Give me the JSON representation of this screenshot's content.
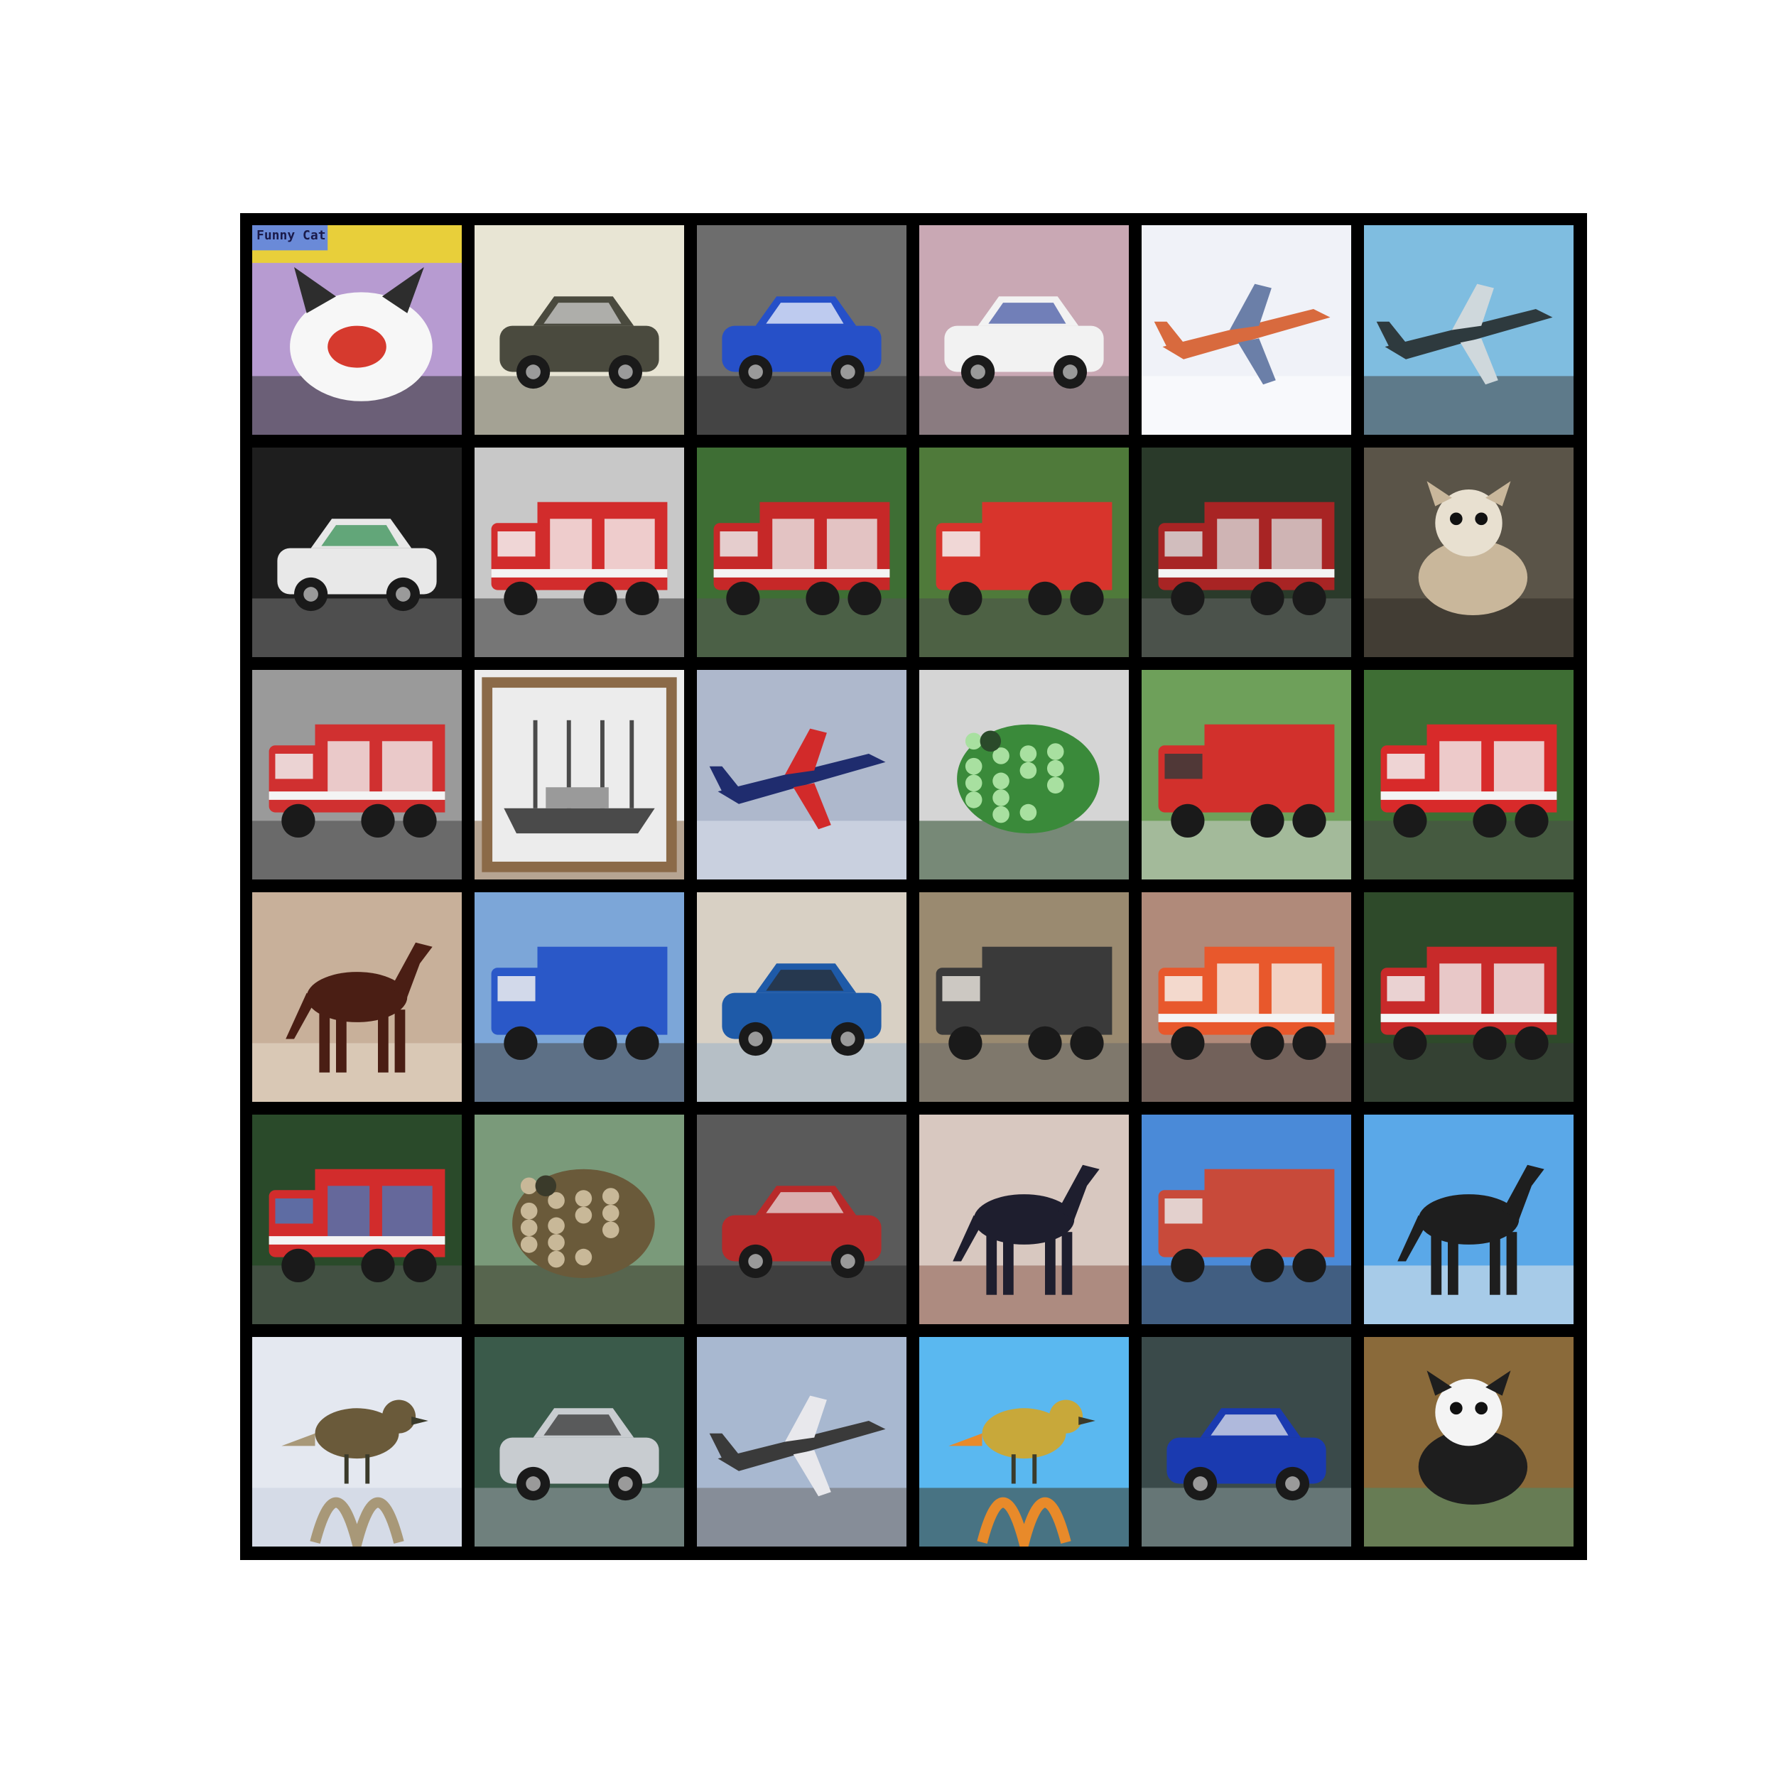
{
  "figure": {
    "grid": {
      "rows": 6,
      "cols": 6
    },
    "tiles": [
      {
        "row": 0,
        "col": 0,
        "subject": "cat-meme",
        "caption": "Funny Cat",
        "palette": [
          "#b79bd1",
          "#f7f7f7",
          "#d63a2e",
          "#2d2d2d"
        ]
      },
      {
        "row": 0,
        "col": 1,
        "subject": "car",
        "palette": [
          "#e8e5d4",
          "#4a4a3e",
          "#d8d8d8",
          "#6b6b5f"
        ]
      },
      {
        "row": 0,
        "col": 2,
        "subject": "car",
        "palette": [
          "#6d6d6d",
          "#2650c8",
          "#ffffff",
          "#222222"
        ]
      },
      {
        "row": 0,
        "col": 3,
        "subject": "suv",
        "palette": [
          "#c9a8b4",
          "#f2f2f2",
          "#3a4fa0",
          "#555555"
        ]
      },
      {
        "row": 0,
        "col": 4,
        "subject": "airplane",
        "palette": [
          "#f0f2f8",
          "#d86a3e",
          "#6b7fa8",
          "#ffffff"
        ]
      },
      {
        "row": 0,
        "col": 5,
        "subject": "airplane",
        "palette": [
          "#7fbde0",
          "#2e3a3e",
          "#cfd8dc",
          "#444444"
        ]
      },
      {
        "row": 1,
        "col": 0,
        "subject": "car",
        "palette": [
          "#1e1e1e",
          "#e8e8e8",
          "#2a8a4a",
          "#777777"
        ]
      },
      {
        "row": 1,
        "col": 1,
        "subject": "fire-truck",
        "palette": [
          "#c8c8c8",
          "#d22c2c",
          "#f5f5f5",
          "#333333"
        ]
      },
      {
        "row": 1,
        "col": 2,
        "subject": "fire-truck",
        "palette": [
          "#3e6e34",
          "#c62828",
          "#eaeaea",
          "#555555"
        ]
      },
      {
        "row": 1,
        "col": 3,
        "subject": "truck",
        "palette": [
          "#4f7a3a",
          "#d8342c",
          "#f4f4f4",
          "#4d4d4d"
        ]
      },
      {
        "row": 1,
        "col": 4,
        "subject": "fire-truck",
        "palette": [
          "#2a3a2a",
          "#a82424",
          "#d8d8d8",
          "#666666"
        ]
      },
      {
        "row": 1,
        "col": 5,
        "subject": "dog",
        "palette": [
          "#5a5448",
          "#c9b79b",
          "#e8e0d0",
          "#2f2a24"
        ]
      },
      {
        "row": 2,
        "col": 0,
        "subject": "fire-truck",
        "palette": [
          "#9a9a9a",
          "#d03030",
          "#f0f0f0",
          "#444444"
        ]
      },
      {
        "row": 2,
        "col": 1,
        "subject": "ship",
        "palette": [
          "#ececec",
          "#4a4a4a",
          "#9a9a9a",
          "#8b6a48"
        ]
      },
      {
        "row": 2,
        "col": 2,
        "subject": "airplane",
        "palette": [
          "#aeb8cc",
          "#1f2c6e",
          "#d22a2a",
          "#e0e4ee"
        ]
      },
      {
        "row": 2,
        "col": 3,
        "subject": "frog",
        "palette": [
          "#d5d5d5",
          "#3a8a3a",
          "#a8e0a0",
          "#2a4a2a"
        ]
      },
      {
        "row": 2,
        "col": 4,
        "subject": "truck",
        "palette": [
          "#6ea05a",
          "#d2302c",
          "#3a3a3a",
          "#cfcfcf"
        ]
      },
      {
        "row": 2,
        "col": 5,
        "subject": "fire-truck",
        "palette": [
          "#3e6e34",
          "#d82a2a",
          "#f2f2f2",
          "#4a4a4a"
        ]
      },
      {
        "row": 3,
        "col": 0,
        "subject": "horse",
        "palette": [
          "#c8b09a",
          "#4a1e14",
          "#3a3e78",
          "#e8dccc"
        ]
      },
      {
        "row": 3,
        "col": 1,
        "subject": "truck",
        "palette": [
          "#7ca6d8",
          "#2a58c8",
          "#f0f0f0",
          "#444444"
        ]
      },
      {
        "row": 3,
        "col": 2,
        "subject": "car",
        "palette": [
          "#d8d0c4",
          "#1e5aa8",
          "#2a2a2a",
          "#9ab0c8"
        ]
      },
      {
        "row": 3,
        "col": 3,
        "subject": "truck",
        "palette": [
          "#9a8a70",
          "#3a3a3a",
          "#e6e2da",
          "#6a6a6a"
        ]
      },
      {
        "row": 3,
        "col": 4,
        "subject": "fire-truck",
        "palette": [
          "#b08a7a",
          "#e8582c",
          "#f4f0ea",
          "#404040"
        ]
      },
      {
        "row": 3,
        "col": 5,
        "subject": "fire-truck",
        "palette": [
          "#2e4a2a",
          "#c82a2a",
          "#f0f0f0",
          "#3a3a3a"
        ]
      },
      {
        "row": 4,
        "col": 0,
        "subject": "fire-truck",
        "palette": [
          "#2a4a2a",
          "#d22c2c",
          "#4a78b8",
          "#555555"
        ]
      },
      {
        "row": 4,
        "col": 1,
        "subject": "frog",
        "palette": [
          "#7a9a7a",
          "#6a5a3a",
          "#c8b898",
          "#3a3a2a"
        ]
      },
      {
        "row": 4,
        "col": 2,
        "subject": "car",
        "palette": [
          "#5a5a5a",
          "#b82a2a",
          "#e8e8e8",
          "#2a2a2a"
        ]
      },
      {
        "row": 4,
        "col": 3,
        "subject": "horse",
        "palette": [
          "#d8c8c0",
          "#1e1e2e",
          "#3a4a8a",
          "#8a5a4a"
        ]
      },
      {
        "row": 4,
        "col": 4,
        "subject": "truck",
        "palette": [
          "#4a8ad8",
          "#c84a3a",
          "#e8e8e8",
          "#3a3a3a"
        ]
      },
      {
        "row": 4,
        "col": 5,
        "subject": "horse",
        "palette": [
          "#5aa8e8",
          "#1e1e1e",
          "#4a8a3a",
          "#e8e8e8"
        ]
      },
      {
        "row": 5,
        "col": 0,
        "subject": "bird",
        "palette": [
          "#e4e8f0",
          "#6a5a3a",
          "#a89878",
          "#c8d0e0"
        ]
      },
      {
        "row": 5,
        "col": 1,
        "subject": "car",
        "palette": [
          "#3a5a4a",
          "#c8ccd0",
          "#2a2a2a",
          "#9aa0a8"
        ]
      },
      {
        "row": 5,
        "col": 2,
        "subject": "airplane",
        "palette": [
          "#a8b8d0",
          "#3a3a3a",
          "#e8e8ec",
          "#6a6a6a"
        ]
      },
      {
        "row": 5,
        "col": 3,
        "subject": "bird",
        "palette": [
          "#5ab8f0",
          "#c8a83a",
          "#e88a2a",
          "#3a3a2a"
        ]
      },
      {
        "row": 5,
        "col": 4,
        "subject": "car",
        "palette": [
          "#3a4a4a",
          "#1a3ab0",
          "#f0f0f0",
          "#8a9a9a"
        ]
      },
      {
        "row": 5,
        "col": 5,
        "subject": "dog",
        "palette": [
          "#8a6a3a",
          "#1e1e1e",
          "#f4f4f4",
          "#4a8a6a"
        ]
      }
    ]
  }
}
